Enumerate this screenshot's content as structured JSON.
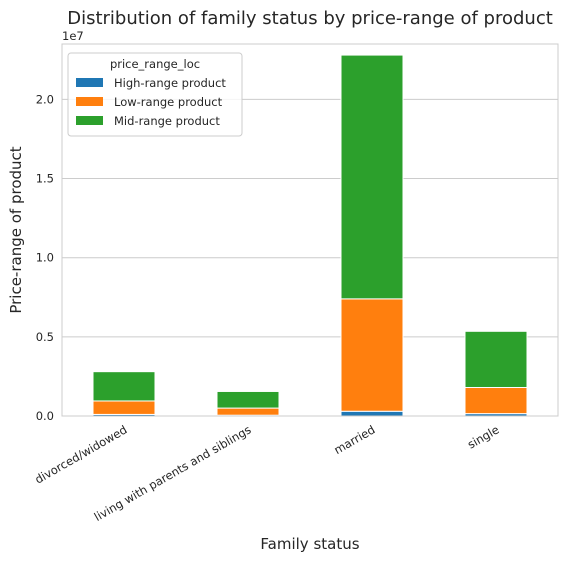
{
  "chart_data": {
    "type": "bar",
    "stacked": true,
    "title": "Distribution of family status by price-range of product",
    "xlabel": "Family status",
    "ylabel": "Price-range of product",
    "y_offset_text": "1e7",
    "ylim": [
      0,
      2.35
    ],
    "y_ticks": [
      "0.0",
      "0.5",
      "1.0",
      "1.5",
      "2.0"
    ],
    "y_tick_values": [
      0,
      0.5,
      1.0,
      1.5,
      2.0
    ],
    "grid": true,
    "legend_title": "price_range_loc",
    "legend_position": "top-left",
    "categories": [
      "divorced/widowed",
      "living with parents and siblings",
      "married",
      "single"
    ],
    "series": [
      {
        "name": "High-range product",
        "color": "#1f77b4",
        "values": [
          0.01,
          0.005,
          0.03,
          0.015
        ]
      },
      {
        "name": "Low-range product",
        "color": "#ff7f0e",
        "values": [
          0.085,
          0.045,
          0.71,
          0.165
        ]
      },
      {
        "name": "Mid-range product",
        "color": "#2ca02c",
        "values": [
          0.185,
          0.105,
          1.54,
          0.355
        ]
      }
    ]
  }
}
